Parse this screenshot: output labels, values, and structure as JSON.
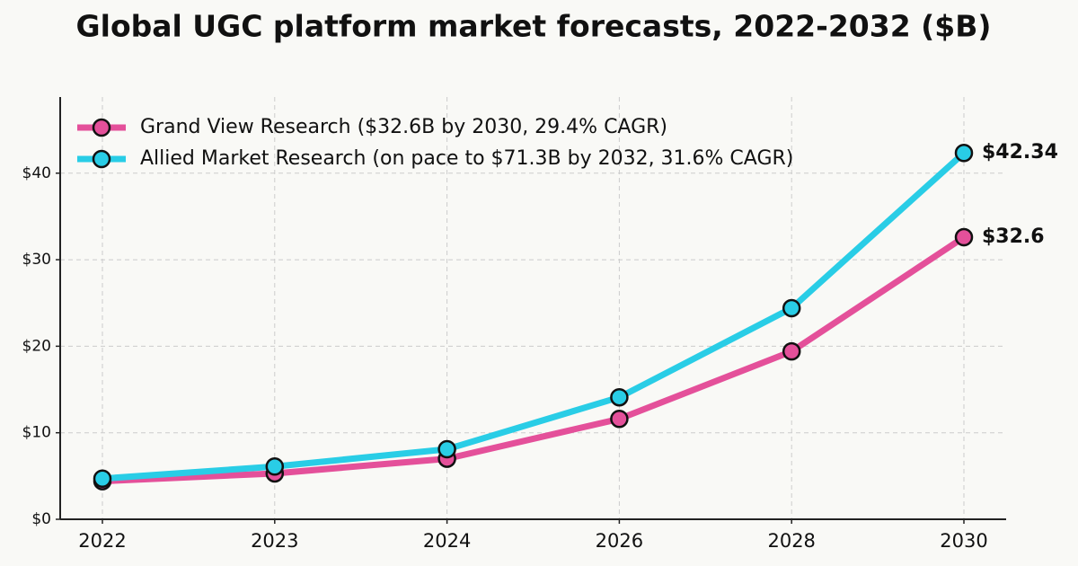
{
  "chart_data": {
    "type": "line",
    "title": "Global UGC platform market forecasts, 2022-2032 ($B)",
    "categories": [
      "2022",
      "2023",
      "2024",
      "2026",
      "2028",
      "2030"
    ],
    "series": [
      {
        "name": "Grand View Research ($32.6B by 2030, 29.4% CAGR)",
        "color": "#e4509a",
        "values": [
          4.4,
          5.3,
          7.0,
          11.6,
          19.4,
          32.6
        ],
        "value_labels": [
          null,
          null,
          null,
          null,
          null,
          "$32.6"
        ]
      },
      {
        "name": "Allied Market Research (on pace to $71.3B by 2032, 31.6% CAGR)",
        "color": "#29cde6",
        "values": [
          4.7,
          6.1,
          8.1,
          14.1,
          24.4,
          42.34
        ],
        "value_labels": [
          null,
          null,
          null,
          null,
          null,
          "$42.34"
        ]
      }
    ],
    "ylim": [
      0,
      48.8
    ],
    "yticks": [
      {
        "value": 0,
        "label": "$0"
      },
      {
        "value": 10,
        "label": "$10"
      },
      {
        "value": 20,
        "label": "$20"
      },
      {
        "value": 30,
        "label": "$30"
      },
      {
        "value": 40,
        "label": "$40"
      }
    ],
    "grid": true,
    "legend": "top-left"
  }
}
